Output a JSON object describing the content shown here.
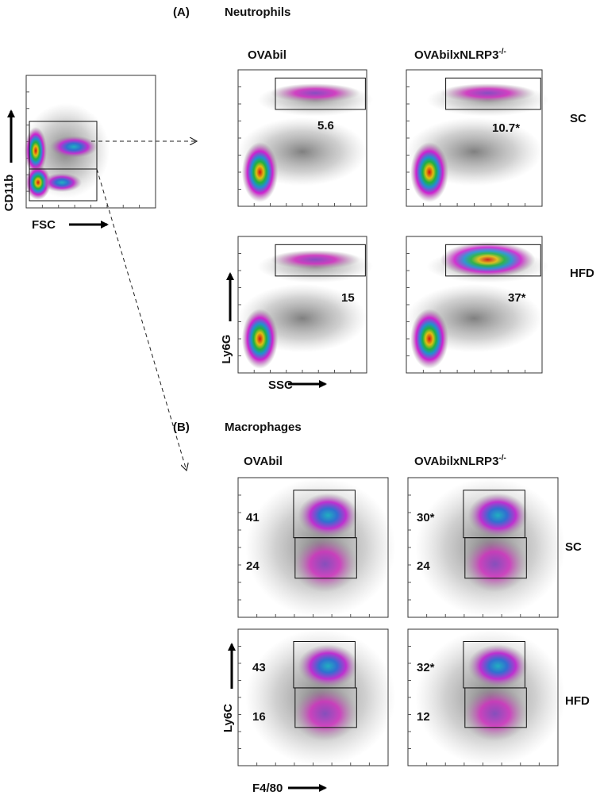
{
  "panel_a": {
    "label": "(A)",
    "title": "Neutrophils",
    "columns": [
      {
        "text": "OVAbil"
      },
      {
        "text": "OVAbilxNLRP3",
        "superscript": "-/-"
      }
    ],
    "rows": [
      "SC",
      "HFD"
    ],
    "gating": {
      "y_label": "CD11b",
      "x_label": "FSC"
    },
    "y_label": "Ly6G",
    "x_label": "SSC",
    "gate_values": [
      [
        "5.6",
        "10.7*"
      ],
      [
        "15",
        "37*"
      ]
    ]
  },
  "panel_b": {
    "label": "(B)",
    "title": "Macrophages",
    "columns": [
      {
        "text": "OVAbil"
      },
      {
        "text": "OVAbilxNLRP3",
        "superscript": "-/-"
      }
    ],
    "rows": [
      "SC",
      "HFD"
    ],
    "y_label": "Ly6C",
    "x_label": "F4/80",
    "gate_values": [
      [
        {
          "upper": "41",
          "lower": "24"
        },
        {
          "upper": "30*",
          "lower": "24"
        }
      ],
      [
        {
          "upper": "43",
          "lower": "16"
        },
        {
          "upper": "32*",
          "lower": "12"
        }
      ]
    ]
  }
}
